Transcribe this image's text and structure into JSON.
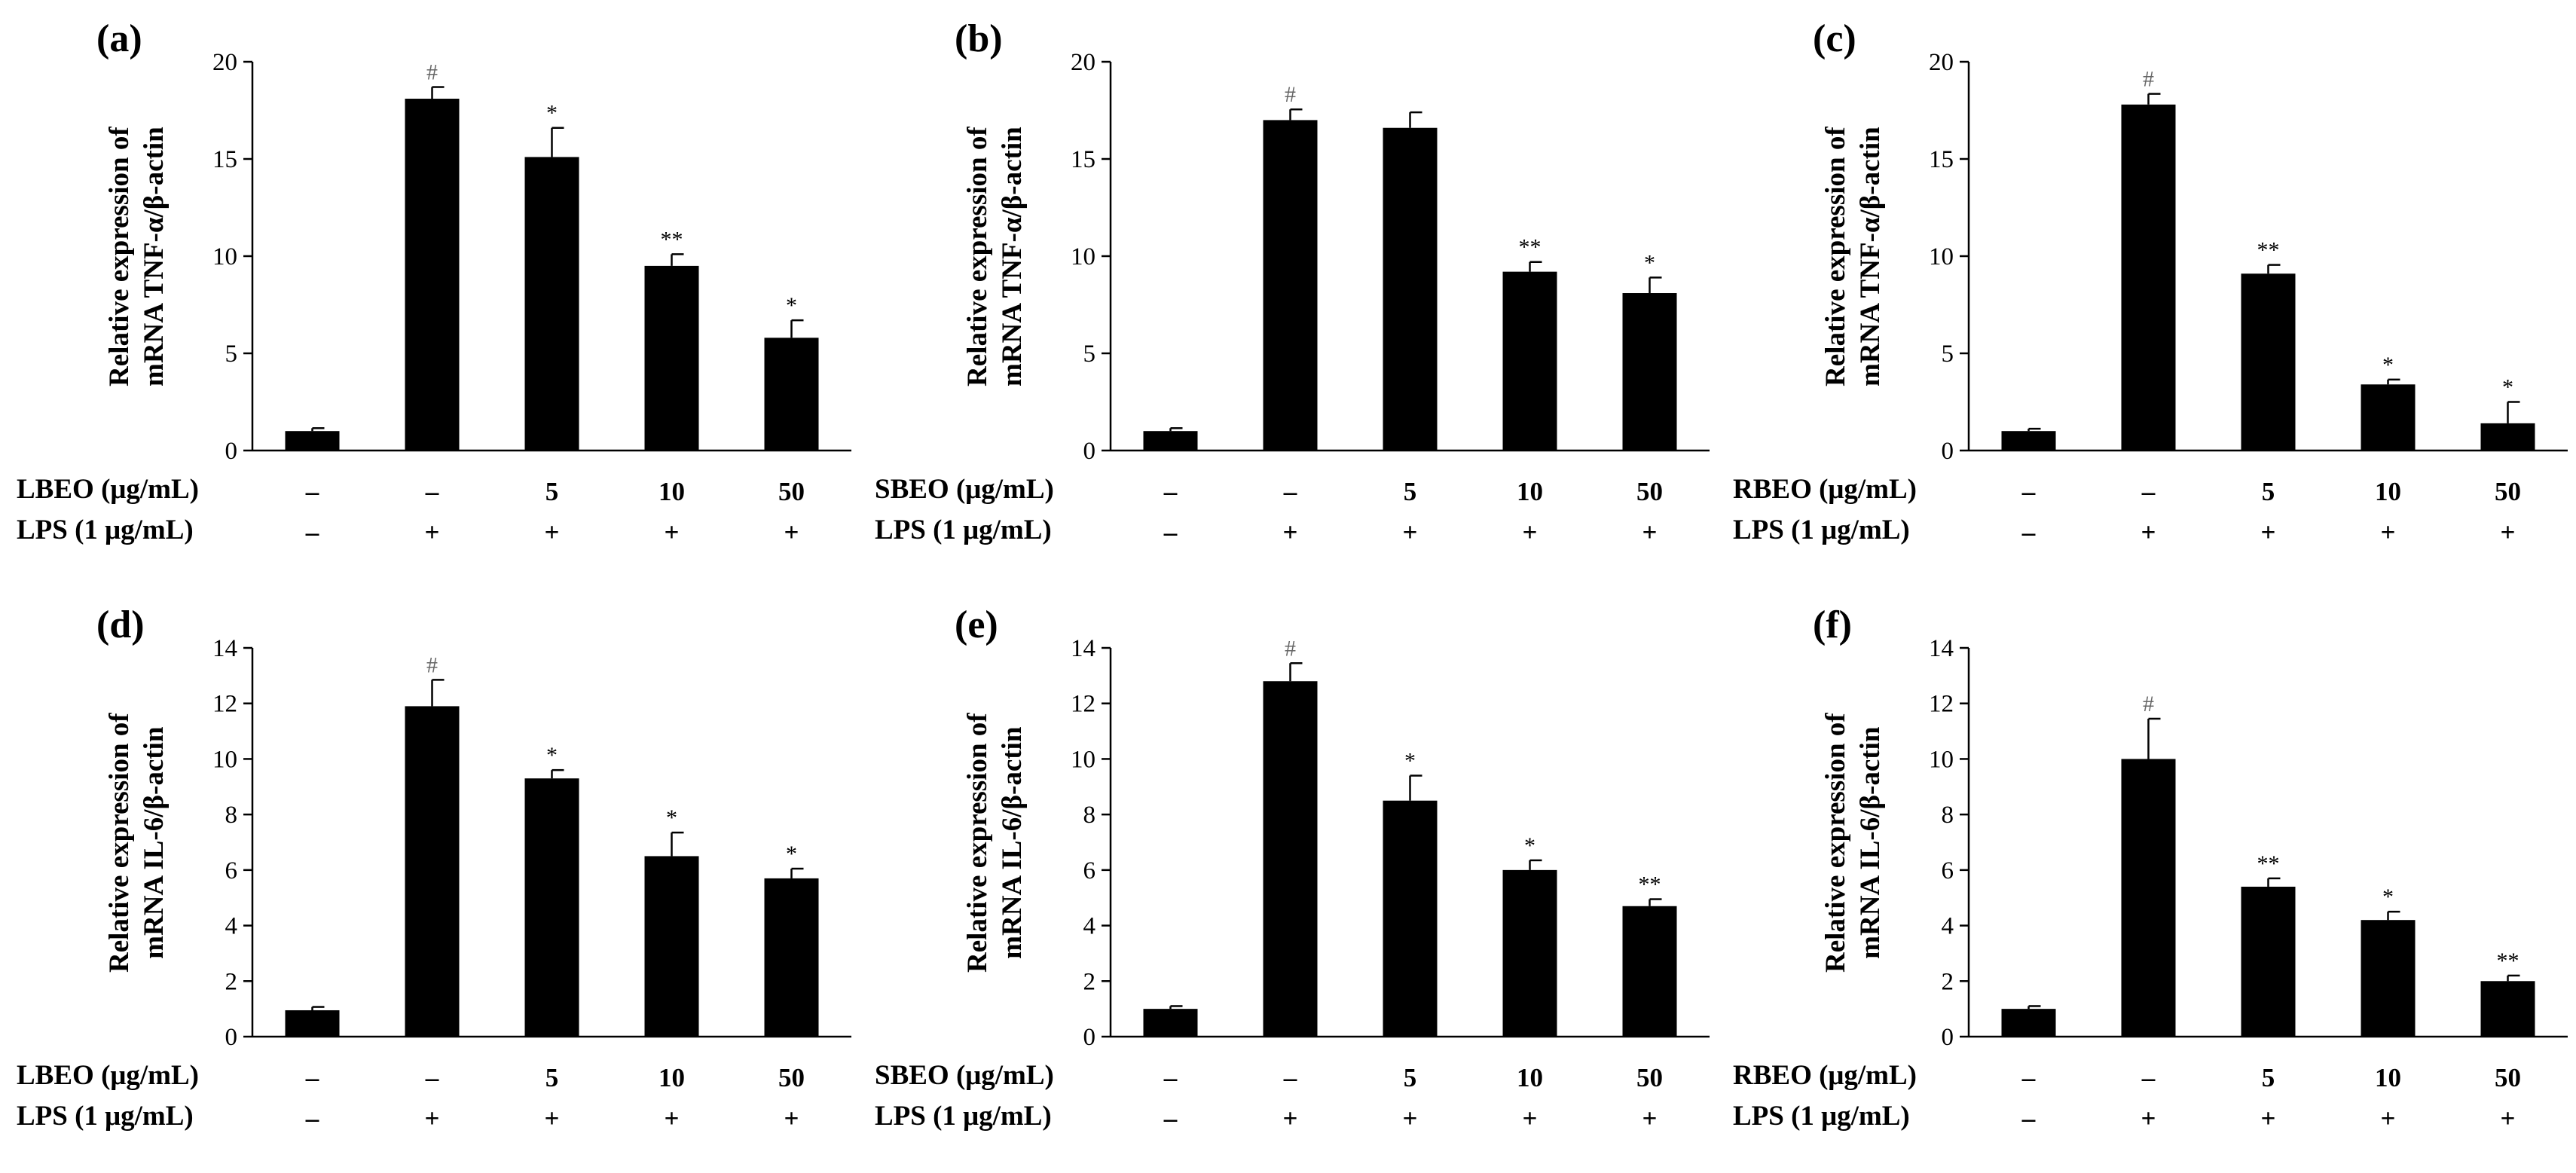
{
  "chart_data": [
    {
      "type": "bar",
      "panel": "(a)",
      "ylabel_line1": "Relative expression of",
      "ylabel_line2": "mRNA TNF-α/β-actin",
      "ylim": [
        0,
        20
      ],
      "yticks": [
        0,
        5,
        10,
        15,
        20
      ],
      "treatment_label": "LBEO (μg/mL)",
      "lps_label": "LPS (1 μg/mL)",
      "treatment": [
        "–",
        "–",
        "5",
        "10",
        "50"
      ],
      "lps": [
        "–",
        "+",
        "+",
        "+",
        "+"
      ],
      "values": [
        1.0,
        18.1,
        15.1,
        9.5,
        5.8
      ],
      "errors": [
        0.15,
        0.6,
        1.5,
        0.6,
        0.9
      ],
      "significance": [
        "",
        "#",
        "*",
        "**",
        "*"
      ]
    },
    {
      "type": "bar",
      "panel": "(b)",
      "ylabel_line1": "Relative expression of",
      "ylabel_line2": "mRNA TNF-α/β-actin",
      "ylim": [
        0,
        20
      ],
      "yticks": [
        0,
        5,
        10,
        15,
        20
      ],
      "treatment_label": "SBEO (μg/mL)",
      "lps_label": "LPS (1 μg/mL)",
      "treatment": [
        "–",
        "–",
        "5",
        "10",
        "50"
      ],
      "lps": [
        "–",
        "+",
        "+",
        "+",
        "+"
      ],
      "values": [
        1.0,
        17.0,
        16.6,
        9.2,
        8.1
      ],
      "errors": [
        0.15,
        0.55,
        0.8,
        0.5,
        0.8
      ],
      "significance": [
        "",
        "#",
        "",
        "**",
        "*"
      ]
    },
    {
      "type": "bar",
      "panel": "(c)",
      "ylabel_line1": "Relative expression of",
      "ylabel_line2": "mRNA TNF-α/β-actin",
      "ylim": [
        0,
        20
      ],
      "yticks": [
        0,
        5,
        10,
        15,
        20
      ],
      "treatment_label": "RBEO (μg/mL)",
      "lps_label": "LPS (1 μg/mL)",
      "treatment": [
        "–",
        "–",
        "5",
        "10",
        "50"
      ],
      "lps": [
        "–",
        "+",
        "+",
        "+",
        "+"
      ],
      "values": [
        1.0,
        17.8,
        9.1,
        3.4,
        1.4
      ],
      "errors": [
        0.12,
        0.55,
        0.45,
        0.25,
        1.1
      ],
      "significance": [
        "",
        "#",
        "**",
        "*",
        "*"
      ]
    },
    {
      "type": "bar",
      "panel": "(d)",
      "ylabel_line1": "Relative expression of",
      "ylabel_line2": "mRNA IL-6/β-actin",
      "ylim": [
        0,
        14
      ],
      "yticks": [
        0,
        2,
        4,
        6,
        8,
        10,
        12,
        14
      ],
      "treatment_label": "LBEO (μg/mL)",
      "lps_label": "LPS (1 μg/mL)",
      "treatment": [
        "–",
        "–",
        "5",
        "10",
        "50"
      ],
      "lps": [
        "–",
        "+",
        "+",
        "+",
        "+"
      ],
      "values": [
        0.95,
        11.9,
        9.3,
        6.5,
        5.7
      ],
      "errors": [
        0.12,
        0.95,
        0.3,
        0.85,
        0.35
      ],
      "significance": [
        "",
        "#",
        "*",
        "*",
        "*"
      ]
    },
    {
      "type": "bar",
      "panel": "(e)",
      "ylabel_line1": "Relative expression of",
      "ylabel_line2": "mRNA IL-6/β-actin",
      "ylim": [
        0,
        14
      ],
      "yticks": [
        0,
        2,
        4,
        6,
        8,
        10,
        12,
        14
      ],
      "treatment_label": "SBEO (μg/mL)",
      "lps_label": "LPS (1 μg/mL)",
      "treatment": [
        "–",
        "–",
        "5",
        "10",
        "50"
      ],
      "lps": [
        "–",
        "+",
        "+",
        "+",
        "+"
      ],
      "values": [
        1.0,
        12.8,
        8.5,
        6.0,
        4.7
      ],
      "errors": [
        0.1,
        0.65,
        0.9,
        0.35,
        0.25
      ],
      "significance": [
        "",
        "#",
        "*",
        "*",
        "**"
      ]
    },
    {
      "type": "bar",
      "panel": "(f)",
      "ylabel_line1": "Relative expression of",
      "ylabel_line2": "mRNA IL-6/β-actin",
      "ylim": [
        0,
        14
      ],
      "yticks": [
        0,
        2,
        4,
        6,
        8,
        10,
        12,
        14
      ],
      "treatment_label": "RBEO (μg/mL)",
      "lps_label": "LPS (1 μg/mL)",
      "treatment": [
        "–",
        "–",
        "5",
        "10",
        "50"
      ],
      "lps": [
        "–",
        "+",
        "+",
        "+",
        "+"
      ],
      "values": [
        1.0,
        10.0,
        5.4,
        4.2,
        2.0
      ],
      "errors": [
        0.1,
        1.45,
        0.3,
        0.3,
        0.2
      ],
      "significance": [
        "",
        "#",
        "**",
        "*",
        "**"
      ]
    }
  ]
}
